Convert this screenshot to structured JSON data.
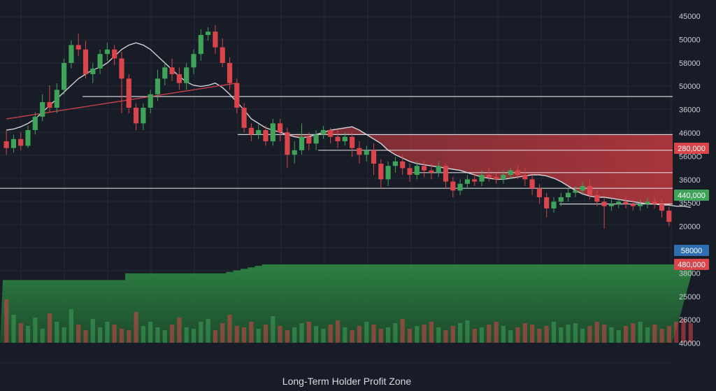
{
  "colors": {
    "background": "#171c27",
    "grid": "#232a37",
    "up": "#3fa35a",
    "down": "#d9454b",
    "loss_zone": "#c0393f",
    "holder_zone": "#2f8a45",
    "ma_fast": "#e7e7ea",
    "ma_slow": "#c9404a",
    "level_line": "#e6e6e9"
  },
  "chart_data": {
    "type": "candlestick",
    "title": "Long-Term Holder Profit Zone",
    "grid": true,
    "y_tick_labels": [
      "45000",
      "50000",
      "58000",
      "50000",
      "36000",
      "46000",
      "5600O",
      "36000",
      "35500",
      "20000",
      "36000",
      "38000",
      "25000",
      "26000",
      "40000"
    ],
    "price_tags": [
      {
        "label": "280,000",
        "color": "#d9454b"
      },
      {
        "label": "440,000",
        "color": "#3fa35a"
      },
      {
        "label": "58000",
        "color": "#2f6fb0"
      },
      {
        "label": "480,000",
        "color": "#d9454b"
      }
    ],
    "candles": [
      {
        "o": 180,
        "c": 174,
        "h": 190,
        "l": 168
      },
      {
        "o": 174,
        "c": 182,
        "h": 186,
        "l": 170
      },
      {
        "o": 182,
        "c": 176,
        "h": 188,
        "l": 172
      },
      {
        "o": 176,
        "c": 190,
        "h": 194,
        "l": 174
      },
      {
        "o": 190,
        "c": 202,
        "h": 206,
        "l": 186
      },
      {
        "o": 202,
        "c": 215,
        "h": 222,
        "l": 198
      },
      {
        "o": 215,
        "c": 210,
        "h": 230,
        "l": 206
      },
      {
        "o": 210,
        "c": 226,
        "h": 232,
        "l": 205
      },
      {
        "o": 226,
        "c": 250,
        "h": 254,
        "l": 222
      },
      {
        "o": 250,
        "c": 266,
        "h": 270,
        "l": 245
      },
      {
        "o": 266,
        "c": 262,
        "h": 276,
        "l": 256
      },
      {
        "o": 262,
        "c": 240,
        "h": 270,
        "l": 236
      },
      {
        "o": 240,
        "c": 245,
        "h": 250,
        "l": 232
      },
      {
        "o": 245,
        "c": 258,
        "h": 262,
        "l": 240
      },
      {
        "o": 258,
        "c": 262,
        "h": 268,
        "l": 252
      },
      {
        "o": 262,
        "c": 254,
        "h": 266,
        "l": 248
      },
      {
        "o": 254,
        "c": 236,
        "h": 260,
        "l": 205
      },
      {
        "o": 236,
        "c": 210,
        "h": 240,
        "l": 205
      },
      {
        "o": 210,
        "c": 196,
        "h": 214,
        "l": 190
      },
      {
        "o": 196,
        "c": 210,
        "h": 214,
        "l": 190
      },
      {
        "o": 210,
        "c": 222,
        "h": 226,
        "l": 205
      },
      {
        "o": 222,
        "c": 236,
        "h": 244,
        "l": 216
      },
      {
        "o": 236,
        "c": 246,
        "h": 250,
        "l": 230
      },
      {
        "o": 246,
        "c": 240,
        "h": 254,
        "l": 234
      },
      {
        "o": 240,
        "c": 232,
        "h": 246,
        "l": 226
      },
      {
        "o": 232,
        "c": 246,
        "h": 250,
        "l": 226
      },
      {
        "o": 246,
        "c": 258,
        "h": 262,
        "l": 240
      },
      {
        "o": 258,
        "c": 275,
        "h": 280,
        "l": 252
      },
      {
        "o": 275,
        "c": 278,
        "h": 282,
        "l": 270
      },
      {
        "o": 278,
        "c": 264,
        "h": 284,
        "l": 258
      },
      {
        "o": 264,
        "c": 250,
        "h": 272,
        "l": 246
      },
      {
        "o": 250,
        "c": 232,
        "h": 255,
        "l": 226
      },
      {
        "o": 232,
        "c": 210,
        "h": 236,
        "l": 205
      },
      {
        "o": 210,
        "c": 192,
        "h": 214,
        "l": 188
      },
      {
        "o": 192,
        "c": 186,
        "h": 196,
        "l": 180
      },
      {
        "o": 186,
        "c": 190,
        "h": 195,
        "l": 182
      },
      {
        "o": 190,
        "c": 180,
        "h": 194,
        "l": 176
      },
      {
        "o": 180,
        "c": 196,
        "h": 200,
        "l": 176
      },
      {
        "o": 196,
        "c": 188,
        "h": 200,
        "l": 180
      },
      {
        "o": 188,
        "c": 168,
        "h": 192,
        "l": 156
      },
      {
        "o": 168,
        "c": 172,
        "h": 180,
        "l": 160
      },
      {
        "o": 172,
        "c": 184,
        "h": 196,
        "l": 168
      },
      {
        "o": 184,
        "c": 178,
        "h": 188,
        "l": 172
      },
      {
        "o": 178,
        "c": 186,
        "h": 190,
        "l": 172
      },
      {
        "o": 186,
        "c": 190,
        "h": 194,
        "l": 182
      },
      {
        "o": 190,
        "c": 184,
        "h": 192,
        "l": 178
      },
      {
        "o": 184,
        "c": 180,
        "h": 190,
        "l": 174
      },
      {
        "o": 180,
        "c": 184,
        "h": 188,
        "l": 176
      },
      {
        "o": 184,
        "c": 174,
        "h": 188,
        "l": 166
      },
      {
        "o": 174,
        "c": 168,
        "h": 180,
        "l": 160
      },
      {
        "o": 168,
        "c": 172,
        "h": 176,
        "l": 162
      },
      {
        "o": 172,
        "c": 160,
        "h": 178,
        "l": 150
      },
      {
        "o": 160,
        "c": 146,
        "h": 164,
        "l": 138
      },
      {
        "o": 146,
        "c": 158,
        "h": 162,
        "l": 140
      },
      {
        "o": 158,
        "c": 162,
        "h": 166,
        "l": 152
      },
      {
        "o": 162,
        "c": 156,
        "h": 168,
        "l": 150
      },
      {
        "o": 156,
        "c": 150,
        "h": 160,
        "l": 144
      },
      {
        "o": 150,
        "c": 158,
        "h": 162,
        "l": 146
      },
      {
        "o": 158,
        "c": 154,
        "h": 162,
        "l": 148
      },
      {
        "o": 154,
        "c": 152,
        "h": 160,
        "l": 146
      },
      {
        "o": 152,
        "c": 158,
        "h": 162,
        "l": 148
      },
      {
        "o": 158,
        "c": 144,
        "h": 160,
        "l": 138
      },
      {
        "o": 144,
        "c": 136,
        "h": 148,
        "l": 130
      },
      {
        "o": 136,
        "c": 142,
        "h": 146,
        "l": 132
      },
      {
        "o": 142,
        "c": 146,
        "h": 150,
        "l": 138
      },
      {
        "o": 146,
        "c": 144,
        "h": 150,
        "l": 140
      },
      {
        "o": 144,
        "c": 150,
        "h": 154,
        "l": 140
      },
      {
        "o": 150,
        "c": 148,
        "h": 156,
        "l": 144
      },
      {
        "o": 148,
        "c": 146,
        "h": 152,
        "l": 142
      },
      {
        "o": 146,
        "c": 150,
        "h": 154,
        "l": 142
      },
      {
        "o": 150,
        "c": 154,
        "h": 156,
        "l": 146
      },
      {
        "o": 154,
        "c": 150,
        "h": 158,
        "l": 146
      },
      {
        "o": 150,
        "c": 146,
        "h": 156,
        "l": 140
      },
      {
        "o": 146,
        "c": 138,
        "h": 150,
        "l": 132
      },
      {
        "o": 138,
        "c": 130,
        "h": 142,
        "l": 124
      },
      {
        "o": 130,
        "c": 120,
        "h": 134,
        "l": 112
      },
      {
        "o": 120,
        "c": 126,
        "h": 130,
        "l": 116
      },
      {
        "o": 126,
        "c": 130,
        "h": 134,
        "l": 122
      },
      {
        "o": 130,
        "c": 134,
        "h": 138,
        "l": 126
      },
      {
        "o": 134,
        "c": 136,
        "h": 140,
        "l": 130
      },
      {
        "o": 136,
        "c": 140,
        "h": 144,
        "l": 132
      },
      {
        "o": 140,
        "c": 132,
        "h": 146,
        "l": 128
      },
      {
        "o": 132,
        "c": 126,
        "h": 136,
        "l": 122
      },
      {
        "o": 126,
        "c": 122,
        "h": 130,
        "l": 102
      },
      {
        "o": 122,
        "c": 124,
        "h": 128,
        "l": 118
      },
      {
        "o": 124,
        "c": 126,
        "h": 128,
        "l": 120
      },
      {
        "o": 126,
        "c": 124,
        "h": 130,
        "l": 120
      },
      {
        "o": 124,
        "c": 122,
        "h": 128,
        "l": 118
      },
      {
        "o": 122,
        "c": 124,
        "h": 128,
        "l": 118
      },
      {
        "o": 124,
        "c": 126,
        "h": 130,
        "l": 120
      },
      {
        "o": 126,
        "c": 124,
        "h": 130,
        "l": 120
      },
      {
        "o": 124,
        "c": 118,
        "h": 128,
        "l": 112
      },
      {
        "o": 118,
        "c": 108,
        "h": 122,
        "l": 104
      }
    ],
    "ma_fast": [
      190,
      191,
      193,
      196,
      200,
      206,
      212,
      218,
      224,
      230,
      236,
      240,
      244,
      246,
      250,
      256,
      262,
      266,
      268,
      266,
      262,
      256,
      250,
      244,
      238,
      233,
      230,
      229,
      230,
      232,
      228,
      222,
      215,
      208,
      200,
      196,
      192,
      190,
      188,
      186,
      184,
      183,
      184,
      186,
      188,
      190,
      191,
      192,
      193,
      190,
      186,
      182,
      178,
      172,
      168,
      165,
      162,
      160,
      159,
      158,
      157,
      156,
      155,
      154,
      152,
      150,
      148,
      147,
      146,
      146,
      147,
      148,
      149,
      150,
      150,
      149,
      147,
      144,
      140,
      136,
      133,
      131,
      130,
      130,
      129,
      128,
      127,
      126,
      125,
      124,
      124,
      123,
      123,
      122,
      122,
      121
    ],
    "ma_slow": [
      200,
      201,
      202,
      203,
      204,
      205,
      206,
      207,
      208,
      209,
      210,
      211,
      212,
      213,
      214,
      215,
      216,
      217,
      218,
      219,
      220,
      221,
      222,
      223,
      224,
      225,
      226,
      227,
      228,
      229,
      230,
      231,
      232
    ],
    "horizontal_levels": [
      220,
      186,
      172,
      152,
      138,
      124
    ],
    "loss_zone": {
      "top": 186,
      "bottom": 124
    },
    "holder_zone_steps": [
      56,
      56,
      56,
      56,
      56,
      56,
      56,
      56,
      56,
      56,
      56,
      56,
      56,
      56,
      56,
      56,
      56,
      62,
      62,
      62,
      62,
      62,
      62,
      62,
      62,
      62,
      62,
      62,
      62,
      62,
      62,
      62,
      62,
      62,
      62,
      62,
      62,
      62,
      62,
      62,
      62,
      62,
      62,
      62,
      62,
      62,
      62,
      62,
      62,
      62,
      62,
      62,
      62,
      62,
      62,
      62,
      62,
      62,
      62,
      62,
      62,
      62,
      62,
      62,
      62,
      62,
      62,
      62,
      62,
      62,
      62,
      62,
      62,
      62,
      62,
      62,
      62,
      62,
      62,
      62,
      62,
      62,
      62,
      62,
      62,
      62,
      62,
      62,
      62,
      62,
      62,
      62,
      62,
      62,
      62,
      62
    ],
    "volume": [
      62,
      40,
      28,
      24,
      36,
      20,
      42,
      30,
      22,
      48,
      26,
      18,
      34,
      22,
      30,
      26,
      20,
      18,
      44,
      24,
      30,
      22,
      18,
      26,
      36,
      22,
      20,
      30,
      34,
      18,
      28,
      40,
      24,
      22,
      30,
      20,
      26,
      38,
      24,
      18,
      22,
      28,
      30,
      24,
      20,
      26,
      32,
      22,
      18,
      24,
      30,
      26,
      20,
      22,
      28,
      34,
      20,
      24,
      26,
      30,
      22,
      18,
      24,
      28,
      32,
      20,
      22,
      26,
      30,
      24,
      18,
      22,
      28,
      26,
      20,
      24,
      30,
      22,
      26,
      28,
      20,
      24,
      30,
      26,
      22,
      18,
      24,
      28,
      30,
      22,
      26,
      20,
      24,
      30,
      34,
      28
    ]
  }
}
